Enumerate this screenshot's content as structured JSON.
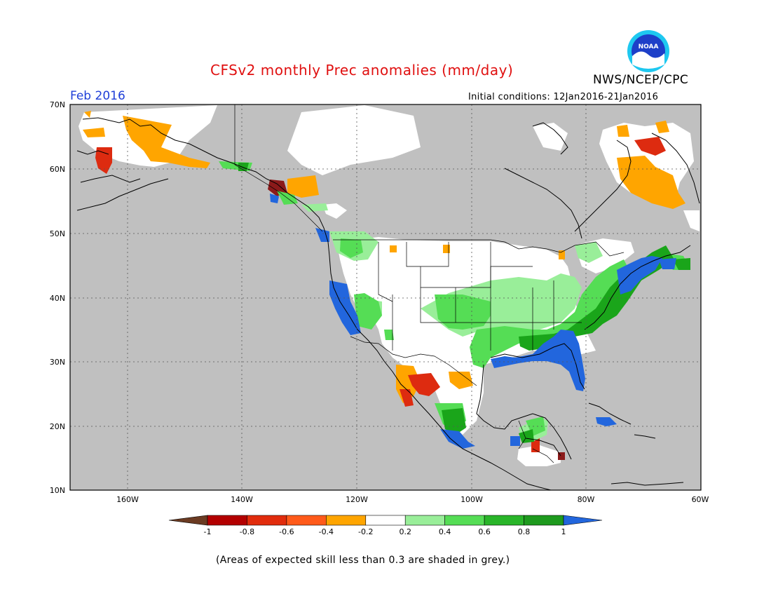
{
  "title": "CFSv2 monthly Prec anomalies (mm/day)",
  "forecast_month": "Feb 2016",
  "initial_conditions": "Initial conditions: 12Jan2016-21Jan2016",
  "agency": "NWS/NCEP/CPC",
  "logo_text": "NOAA",
  "footnote": "(Areas of expected skill less than 0.3 are shaded in grey.)",
  "colors": {
    "low_skill": "#c0c0c0",
    "land_neutral": "#ffffff",
    "dry_strong": "#8b1a1a",
    "dry_moderate": "#dd2b10",
    "dry_light": "#ffa500",
    "wet_light": "#99ee99",
    "wet_moderate": "#55dd55",
    "wet_strong": "#1aa51a",
    "wet_heavy": "#2266dd"
  },
  "map": {
    "lat_labels": [
      "70N",
      "60N",
      "50N",
      "40N",
      "30N",
      "20N",
      "10N"
    ],
    "lon_labels": [
      "160W",
      "140W",
      "120W",
      "100W",
      "80W",
      "60W"
    ]
  },
  "colorbar": {
    "labels": [
      "-1",
      "-0.8",
      "-0.6",
      "-0.4",
      "-0.2",
      "0.2",
      "0.4",
      "0.6",
      "0.8",
      "1"
    ],
    "colors": [
      "#6b3b22",
      "#b30000",
      "#e12c0c",
      "#ff5a1a",
      "#ffa500",
      "#ffffff",
      "#99ee99",
      "#55dd55",
      "#29b529",
      "#1e9a1e",
      "#2266dd"
    ]
  }
}
